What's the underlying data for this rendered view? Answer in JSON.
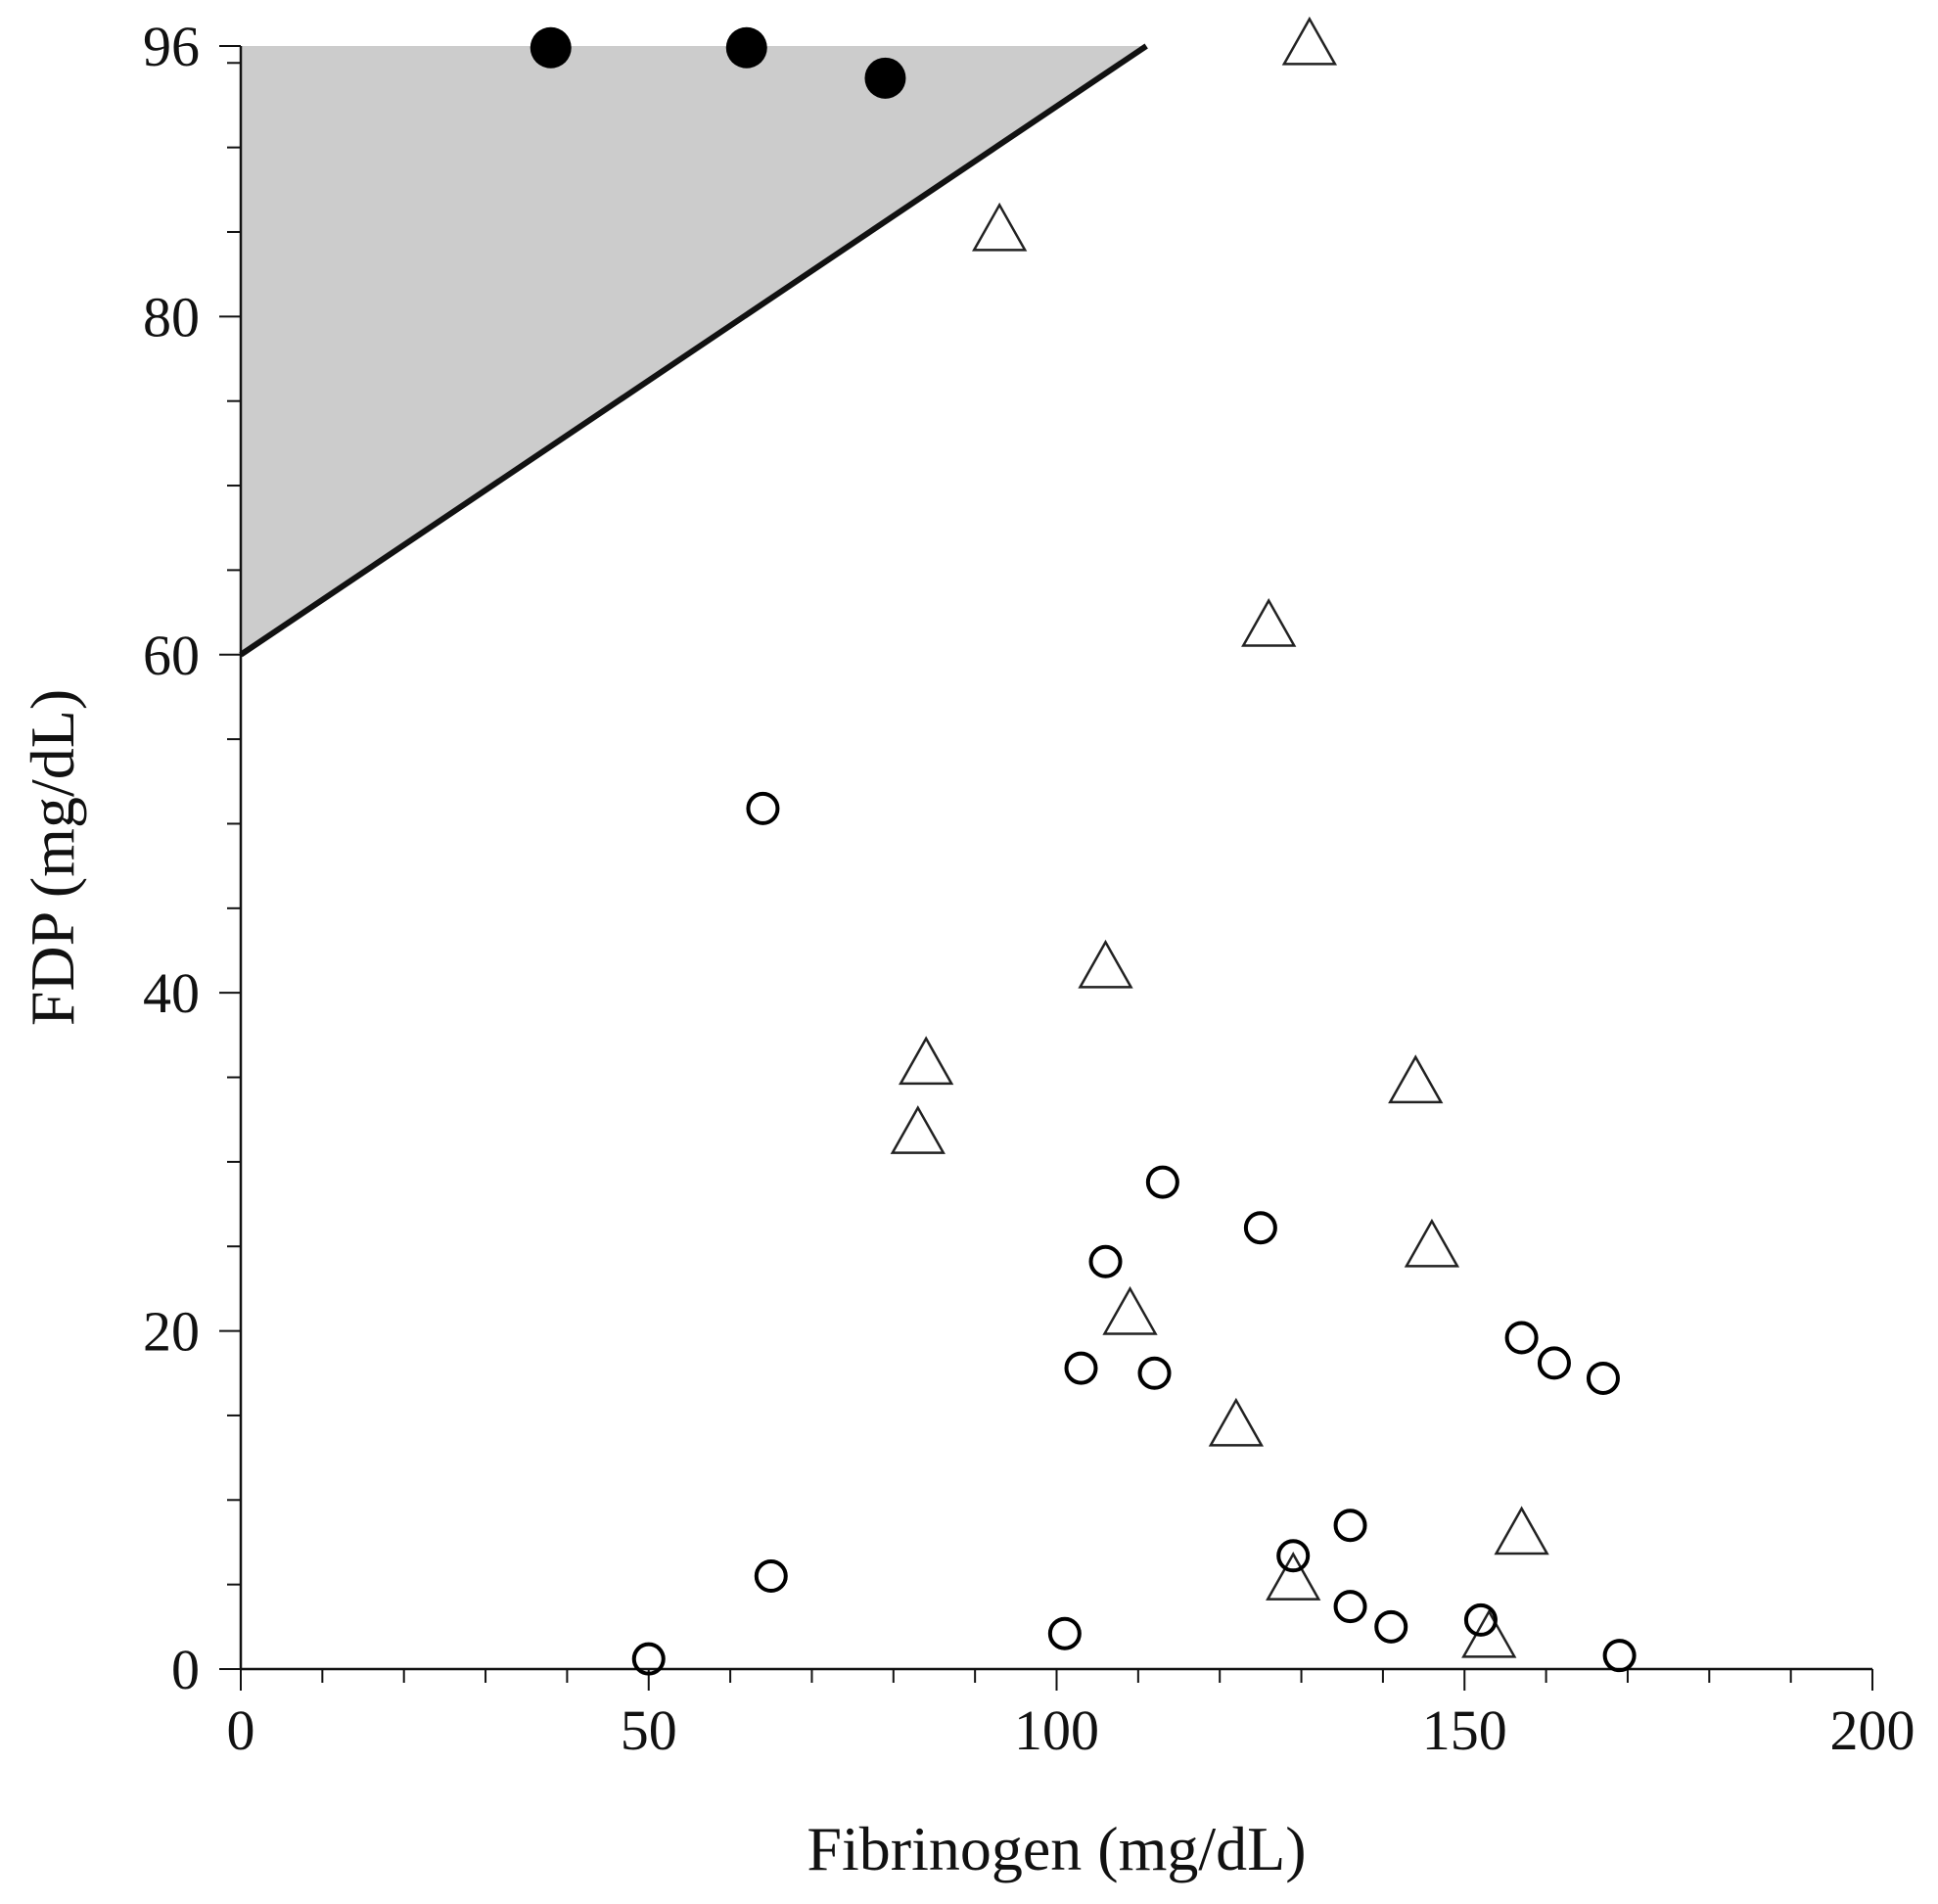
{
  "chart_data": {
    "type": "scatter",
    "title": "",
    "xlabel": "Fibrinogen (mg/dL)",
    "ylabel": "FDP (mg/dL)",
    "xlim": [
      0,
      200
    ],
    "ylim": [
      0,
      96
    ],
    "x_ticks": [
      0,
      50,
      100,
      150,
      200
    ],
    "x_minor_step": 10,
    "y_ticks": [
      0,
      20,
      40,
      60,
      80,
      96
    ],
    "y_minor_step": 5,
    "grid": false,
    "region": {
      "name": "shaded-region",
      "fill": "#cccccc",
      "polygon": [
        [
          0,
          60
        ],
        [
          0,
          96
        ],
        [
          111,
          96
        ]
      ]
    },
    "boundary_line": {
      "x1": 0,
      "y1": 60,
      "x2": 111,
      "y2": 96,
      "color": "#111111"
    },
    "series": [
      {
        "name": "filled-circles",
        "marker": "circle-filled",
        "points": [
          [
            38,
            95.9
          ],
          [
            62,
            95.9
          ],
          [
            79,
            94.1
          ]
        ]
      },
      {
        "name": "open-triangles",
        "marker": "triangle-open",
        "points": [
          [
            131,
            96
          ],
          [
            93,
            85
          ],
          [
            126,
            61.6
          ],
          [
            106,
            41.4
          ],
          [
            84,
            35.7
          ],
          [
            83,
            31.6
          ],
          [
            144,
            34.6
          ],
          [
            146,
            24.9
          ],
          [
            109,
            20.9
          ],
          [
            122,
            14.3
          ],
          [
            157,
            7.9
          ],
          [
            129,
            5.2
          ],
          [
            153,
            1.8
          ]
        ]
      },
      {
        "name": "open-circles",
        "marker": "circle-open",
        "points": [
          [
            64,
            50.9
          ],
          [
            113,
            28.8
          ],
          [
            125,
            26.1
          ],
          [
            106,
            24.1
          ],
          [
            103,
            17.8
          ],
          [
            112,
            17.5
          ],
          [
            157,
            19.6
          ],
          [
            161,
            18.1
          ],
          [
            167,
            17.2
          ],
          [
            136,
            8.5
          ],
          [
            129,
            6.7
          ],
          [
            65,
            5.5
          ],
          [
            136,
            3.7
          ],
          [
            141,
            2.5
          ],
          [
            152,
            2.9
          ],
          [
            101,
            2.1
          ],
          [
            50,
            0.6
          ],
          [
            169,
            0.8
          ]
        ]
      }
    ]
  }
}
